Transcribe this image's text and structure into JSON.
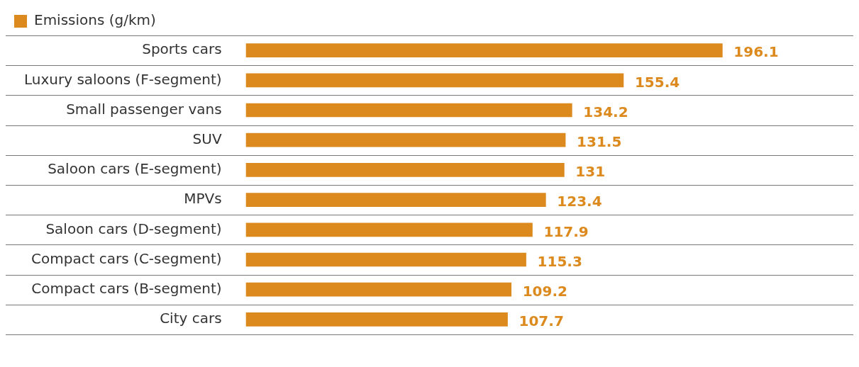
{
  "chart_data": {
    "type": "bar",
    "orientation": "horizontal",
    "tick_labels": "y",
    "categories": [
      "Sports cars",
      "Luxury saloons (F-segment)",
      "Small passenger vans",
      "SUV",
      "Saloon cars (E-segment)",
      "MPVs",
      "Saloon cars (D-segment)",
      "Compact cars (C-segment)",
      "Compact cars (B-segment)",
      "City cars"
    ],
    "series": [
      {
        "name": "Emissions (g/km)",
        "color": "#dc8a1e",
        "values": [
          196.1,
          155.4,
          134.2,
          131.5,
          131,
          123.4,
          117.9,
          115.3,
          109.2,
          107.7
        ]
      }
    ],
    "data_labels": true,
    "grid": "y",
    "legend": "top"
  }
}
